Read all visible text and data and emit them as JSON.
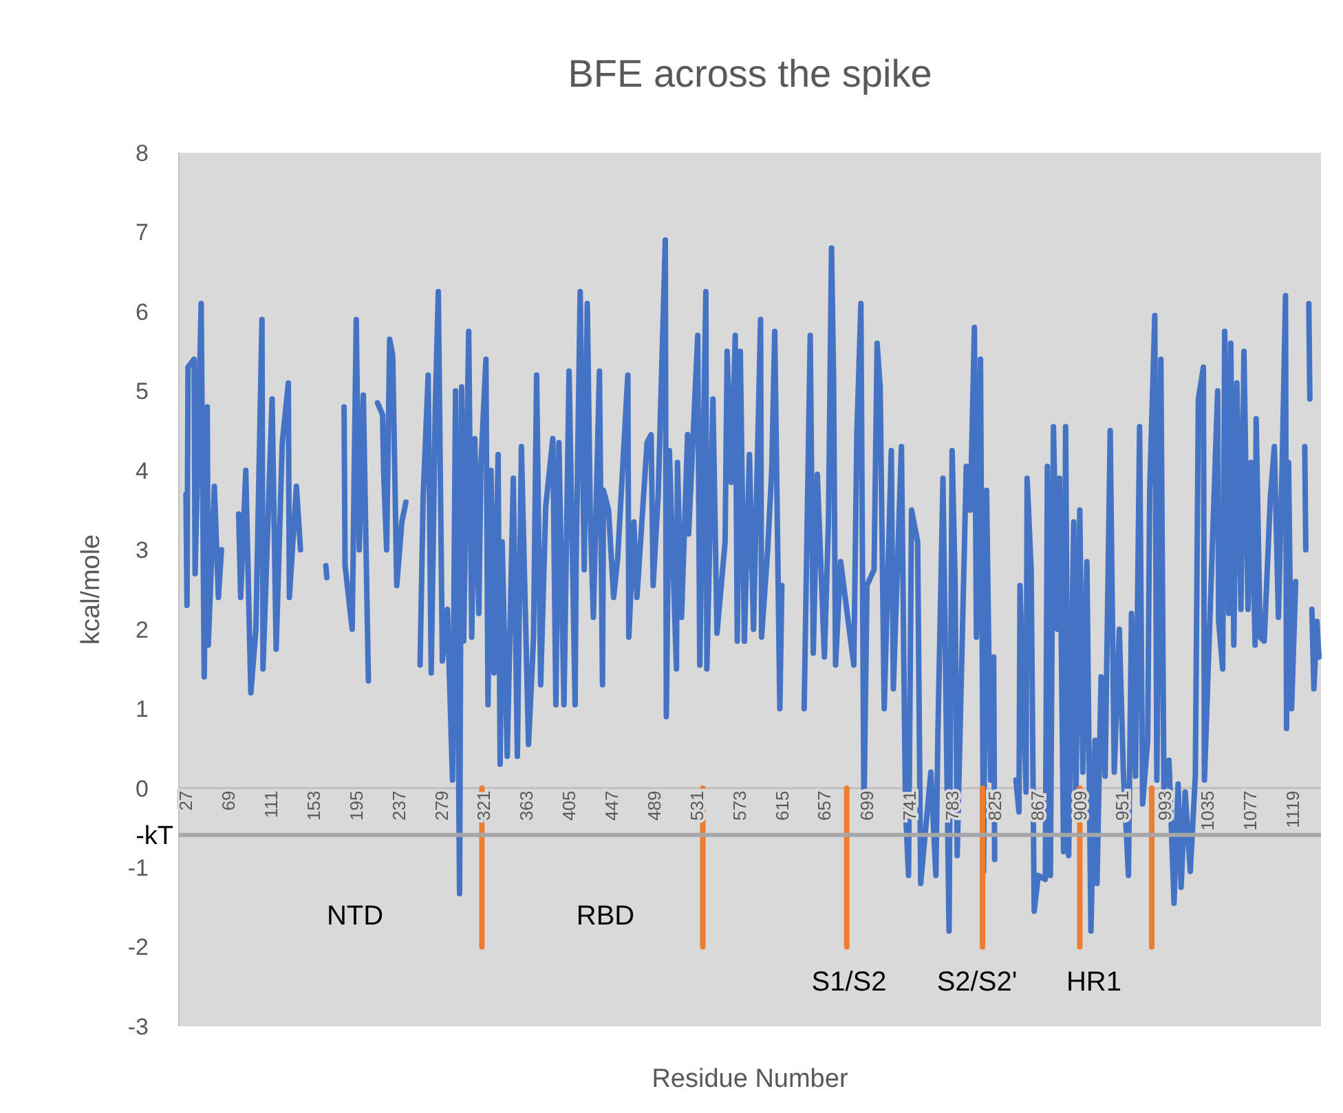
{
  "chart_data": {
    "type": "line",
    "title": "BFE across the spike",
    "xlabel": "Residue Number",
    "ylabel": "kcal/mole",
    "xlim": [
      20,
      1147
    ],
    "ylim": [
      -3,
      8
    ],
    "xticks": [
      27,
      69,
      111,
      153,
      195,
      237,
      279,
      321,
      363,
      405,
      447,
      489,
      531,
      573,
      615,
      657,
      699,
      741,
      783,
      825,
      867,
      909,
      951,
      993,
      1035,
      1077,
      1119
    ],
    "yticks": [
      -3,
      -2,
      -1,
      0,
      1,
      2,
      3,
      4,
      5,
      6,
      7,
      8
    ],
    "ref_lines": [
      {
        "axis": "y",
        "value": -0.59,
        "label": "-kT",
        "color": "#a6a6a6"
      }
    ],
    "annotations": [
      "NTD",
      "RBD",
      "S1/S2",
      "S2/S2'",
      "HR1"
    ],
    "series": [
      {
        "color": "#4472c4",
        "x": [
          27,
          28,
          29,
          35,
          36,
          42,
          45,
          48,
          49,
          55,
          59,
          62,
          70,
          79,
          81,
          86,
          91,
          96,
          102,
          103,
          112,
          116,
          122,
          128,
          129,
          136,
          140,
          145,
          165,
          166,
          170,
          183,
          184,
          191,
          195,
          198,
          202,
          207,
          210,
          216,
          221,
          222,
          225,
          228,
          231,
          235,
          240,
          244,
          247,
          258,
          261,
          266,
          269,
          273,
          276,
          280,
          285,
          290,
          293,
          297,
          299,
          301,
          306,
          309,
          312,
          316,
          318,
          323,
          325,
          328,
          331,
          335,
          337,
          339,
          344,
          350,
          354,
          358,
          365,
          370,
          373,
          377,
          382,
          389,
          392,
          395,
          400,
          405,
          411,
          412,
          416,
          420,
          423,
          426,
          429,
          435,
          438,
          439,
          444,
          449,
          453,
          463,
          464,
          469,
          472,
          482,
          486,
          488,
          493,
          500,
          501,
          504,
          511,
          512,
          516,
          522,
          523,
          532,
          534,
          540,
          541,
          547,
          551,
          559,
          561,
          565,
          569,
          571,
          574,
          578,
          583,
          587,
          594,
          595,
          601,
          605,
          608,
          613,
          615,
          625,
          637,
          643,
          646,
          650,
          657,
          661,
          664,
          666,
          668,
          673,
          686,
          689,
          693,
          696,
          699,
          706,
          709,
          712,
          716,
          723,
          725,
          733,
          737,
          740,
          743,
          749,
          752,
          762,
          767,
          769,
          774,
          780,
          783,
          786,
          788,
          797,
          801,
          805,
          807,
          811,
          814,
          817,
          821,
          824,
          825,
          835,
          846,
          849,
          850,
          856,
          857,
          861,
          864,
          868,
          875,
          877,
          880,
          883,
          887,
          889,
          893,
          895,
          898,
          903,
          905,
          909,
          912,
          916,
          920,
          924,
          926,
          930,
          934,
          939,
          943,
          948,
          952,
          957,
          960,
          964,
          968,
          971,
          976,
          978,
          983,
          985,
          989,
          992,
          997,
          1002,
          1006,
          1009,
          1013,
          1018,
          1023,
          1026,
          1031,
          1032,
          1045,
          1046,
          1050,
          1052,
          1056,
          1058,
          1061,
          1064,
          1068,
          1071,
          1075,
          1078,
          1082,
          1083,
          1087,
          1091,
          1097,
          1101,
          1105,
          1109,
          1112,
          1113,
          1115,
          1118,
          1122,
          1128,
          1131,
          1132,
          1134,
          1135,
          1136,
          1137,
          1138,
          1140,
          1143,
          1145
        ],
        "values": [
          3.7,
          2.3,
          5.3,
          5.4,
          2.7,
          6.1,
          1.4,
          4.8,
          1.8,
          3.8,
          2.4,
          3.0,
          null,
          3.45,
          2.4,
          4.0,
          1.2,
          2.0,
          5.9,
          1.5,
          4.9,
          1.75,
          4.35,
          5.1,
          2.4,
          3.8,
          3.0,
          null,
          2.8,
          2.65,
          null,
          4.8,
          2.8,
          2.0,
          5.9,
          3.0,
          4.95,
          1.35,
          null,
          4.85,
          4.7,
          4.0,
          3.0,
          5.65,
          5.45,
          2.55,
          3.35,
          3.6,
          null,
          1.55,
          3.65,
          5.2,
          1.45,
          4.8,
          6.25,
          1.6,
          2.25,
          0.1,
          5.0,
          -1.33,
          5.05,
          1.85,
          5.75,
          1.9,
          4.4,
          2.2,
          4.05,
          5.4,
          1.05,
          4.0,
          1.45,
          4.2,
          0.3,
          3.1,
          0.4,
          3.9,
          0.4,
          4.3,
          0.55,
          1.9,
          5.2,
          1.3,
          3.55,
          4.4,
          1.05,
          4.35,
          1.05,
          5.25,
          1.05,
          2.85,
          6.25,
          2.75,
          6.1,
          3.4,
          2.15,
          5.25,
          1.3,
          3.75,
          3.5,
          2.4,
          2.9,
          5.2,
          1.9,
          3.35,
          2.4,
          4.35,
          4.45,
          2.55,
          3.7,
          6.9,
          0.9,
          4.25,
          1.5,
          4.1,
          2.15,
          4.45,
          3.2,
          5.7,
          1.55,
          6.25,
          1.5,
          4.9,
          1.95,
          3.1,
          5.5,
          3.85,
          5.7,
          1.85,
          5.5,
          1.85,
          4.2,
          2.0,
          5.9,
          1.9,
          3.0,
          4.0,
          5.75,
          1.0,
          2.55,
          null,
          1.0,
          5.7,
          1.7,
          3.95,
          1.65,
          3.35,
          6.8,
          5.2,
          1.55,
          2.85,
          1.55,
          4.45,
          6.1,
          -0.3,
          2.55,
          2.75,
          5.6,
          5.05,
          1.0,
          4.25,
          1.25,
          4.3,
          -0.25,
          -1.1,
          3.5,
          3.1,
          -1.2,
          0.2,
          -1.1,
          0.7,
          3.9,
          -1.8,
          4.25,
          2.6,
          -0.85,
          4.05,
          3.5,
          5.8,
          1.9,
          5.4,
          -1.05,
          3.75,
          0.1,
          1.65,
          -0.9,
          null,
          0.1,
          -0.3,
          2.55,
          -0.05,
          3.9,
          2.75,
          -1.55,
          -1.1,
          -1.15,
          4.05,
          -1.1,
          4.55,
          2.0,
          3.9,
          -0.8,
          4.55,
          -0.85,
          3.35,
          -0.3,
          3.5,
          0.2,
          2.85,
          -1.8,
          0.6,
          -1.2,
          1.4,
          0.15,
          4.5,
          0.2,
          2.0,
          0.2,
          -1.1,
          2.2,
          0.15,
          4.55,
          -0.2,
          0.6,
          3.75,
          5.95,
          0.1,
          5.4,
          0.0,
          0.35,
          -1.45,
          0.05,
          -1.25,
          -0.05,
          -1.05,
          0.15,
          4.9,
          5.3,
          0.1,
          5.0,
          2.1,
          1.5,
          5.75,
          2.2,
          5.6,
          1.8,
          5.1,
          2.25,
          5.5,
          2.25,
          4.1,
          1.8,
          4.65,
          1.9,
          1.85,
          3.65,
          4.3,
          2.15,
          4.25,
          6.2,
          0.75,
          4.1,
          1.0,
          2.6,
          null,
          4.3,
          3.0,
          null,
          6.1,
          4.9,
          null,
          2.25,
          1.25,
          2.1,
          1.65
        ]
      },
      {
        "type": "line",
        "color": "#ed7d31",
        "x": [
          319,
          319
        ],
        "values": [
          0,
          -2
        ]
      },
      {
        "type": "line",
        "color": "#ed7d31",
        "x": [
          537,
          537
        ],
        "values": [
          0,
          -2
        ]
      },
      {
        "type": "line",
        "color": "#ed7d31",
        "x": [
          679,
          679
        ],
        "values": [
          0,
          -2
        ]
      },
      {
        "type": "line",
        "color": "#ed7d31",
        "x": [
          813,
          813
        ],
        "values": [
          0,
          -2
        ]
      },
      {
        "type": "line",
        "color": "#ed7d31",
        "x": [
          909,
          909
        ],
        "values": [
          0,
          -2
        ]
      },
      {
        "type": "line",
        "color": "#ed7d31",
        "x": [
          980,
          980
        ],
        "values": [
          0,
          -2
        ]
      }
    ]
  }
}
